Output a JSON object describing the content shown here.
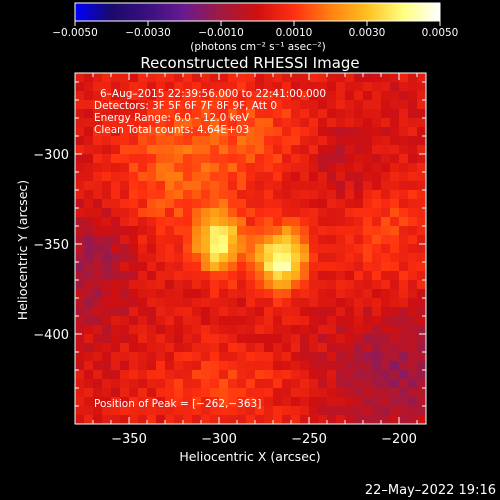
{
  "chart_data": {
    "type": "heatmap",
    "title": "Reconstructed RHESSI Image",
    "xlabel": "Heliocentric X (arcsec)",
    "ylabel": "Heliocentric Y (arcsec)",
    "xlim": [
      -380,
      -185
    ],
    "ylim": [
      -450,
      -255
    ],
    "x_ticks": [
      -350,
      -300,
      -250,
      -200
    ],
    "y_ticks": [
      -300,
      -350,
      -400
    ],
    "x_tick_labels": [
      "−350",
      "−300",
      "−250",
      "−200"
    ],
    "y_tick_labels": [
      "−300",
      "−350",
      "−400"
    ],
    "colorbar": {
      "min": -0.005,
      "max": 0.005,
      "ticks": [
        -0.005,
        -0.003,
        -0.001,
        0.001,
        0.003,
        0.005
      ],
      "tick_labels": [
        "−0.0050",
        "−0.0030",
        "−0.0010",
        "0.0010",
        "0.0030",
        "0.0050"
      ],
      "label": "(photons cm⁻² s⁻¹ asec⁻²)",
      "colormap": [
        "#0000ff",
        "#1a0a6a",
        "#3a1080",
        "#6a1a90",
        "#a01a40",
        "#d01010",
        "#ff3010",
        "#ff8010",
        "#ffc020",
        "#ffff80",
        "#ffffff"
      ]
    },
    "sources": [
      {
        "x": -265,
        "y": -358,
        "peak": 0.0042,
        "sx": 10,
        "sy": 12
      },
      {
        "x": -300,
        "y": -350,
        "peak": 0.0036,
        "sx": 9,
        "sy": 12
      },
      {
        "x": -325,
        "y": -310,
        "peak": 0.0012,
        "sx": 28,
        "sy": 30
      },
      {
        "x": -205,
        "y": -345,
        "peak": 0.0009,
        "sx": 18,
        "sy": 30
      },
      {
        "x": -300,
        "y": -430,
        "peak": 0.0008,
        "sx": 30,
        "sy": 18
      },
      {
        "x": -275,
        "y": -290,
        "peak": 0.0009,
        "sx": 30,
        "sy": 20
      }
    ],
    "negative_regions": [
      {
        "x": -200,
        "y": -420,
        "depth": -0.0013,
        "sx": 25,
        "sy": 25
      },
      {
        "x": -370,
        "y": -360,
        "depth": -0.0012,
        "sx": 15,
        "sy": 25
      },
      {
        "x": -230,
        "y": -300,
        "depth": -0.0008,
        "sx": 18,
        "sy": 18
      }
    ],
    "peak_marker": {
      "x": -262,
      "y": -363
    }
  },
  "annotations": {
    "time_range": "6–Aug–2015 22:39:56.000 to 22:41:00.000",
    "detectors": "Detectors: 3F 5F 6F 7F 8F 9F, Att 0",
    "energy": "Energy Range: 6.0 – 12.0 keV",
    "clean": "Clean     Total counts: 4.64E+03",
    "peak_position": "Position of Peak = [−262,−363]"
  },
  "footer": {
    "timestamp": "22–May–2022 19:16"
  }
}
